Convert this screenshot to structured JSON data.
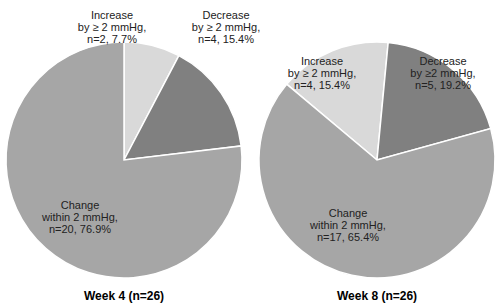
{
  "chart_data": [
    {
      "type": "pie",
      "title": "Week 4 (n=26)",
      "categories": [
        "Increase by ≥ 2 mmHg, n=2, 7.7%",
        "Decrease by ≥ 2 mmHg, n=4, 15.4%",
        "Change within 2 mmHg, n=20, 76.9%"
      ],
      "values": [
        7.7,
        15.4,
        76.9
      ],
      "colors": [
        "#d9d9d9",
        "#808080",
        "#a6a6a6"
      ],
      "data_labels": true
    },
    {
      "type": "pie",
      "title": "Week 8 (n=26)",
      "categories": [
        "Increase by ≥ 2 mmHg, n=4, 15.4%",
        "Decrease by ≥2 mmHg, n=5, 19.2%",
        "Change within 2 mmHg, n=17, 65.4%"
      ],
      "values": [
        15.4,
        19.2,
        65.4
      ],
      "colors": [
        "#d9d9d9",
        "#808080",
        "#a6a6a6"
      ],
      "data_labels": true
    }
  ]
}
